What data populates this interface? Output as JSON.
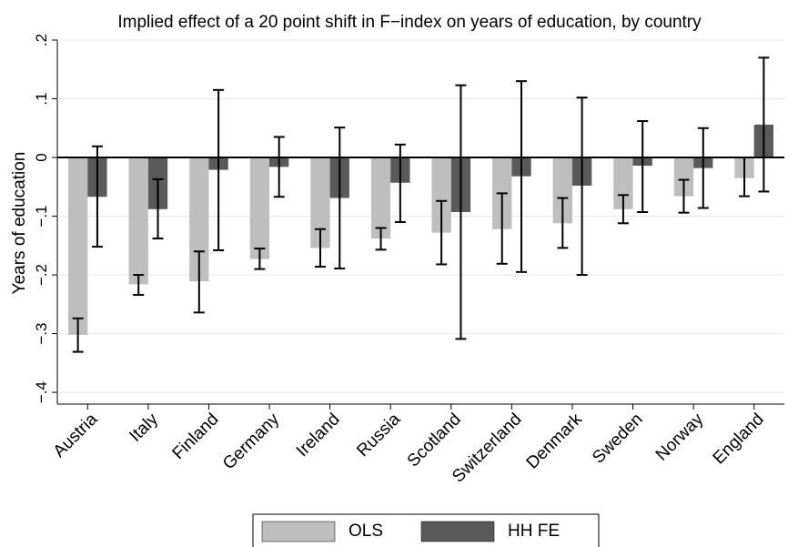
{
  "chart_data": {
    "type": "bar",
    "title": "Implied effect of a 20 point shift in F−index on years of education, by country",
    "y_label": "Years of education",
    "categories": [
      "Austria",
      "Italy",
      "Finland",
      "Germany",
      "Ireland",
      "Russia",
      "Scotland",
      "Switzerland",
      "Denmark",
      "Sweden",
      "Norway",
      "England"
    ],
    "series": [
      {
        "name": "OLS",
        "color": "#bebebe",
        "values": [
          -0.302,
          -0.216,
          -0.211,
          -0.173,
          -0.154,
          -0.138,
          -0.128,
          -0.122,
          -0.112,
          -0.088,
          -0.066,
          -0.035
        ],
        "ci_low": [
          -0.331,
          -0.234,
          -0.264,
          -0.19,
          -0.186,
          -0.157,
          -0.182,
          -0.181,
          -0.154,
          -0.112,
          -0.094,
          -0.066
        ],
        "ci_high": [
          -0.274,
          -0.2,
          -0.16,
          -0.155,
          -0.122,
          -0.12,
          -0.074,
          -0.061,
          -0.069,
          -0.064,
          -0.038,
          0
        ]
      },
      {
        "name": "HH FE",
        "color": "#5a5a5a",
        "values": [
          -0.067,
          -0.088,
          -0.021,
          -0.016,
          -0.069,
          -0.043,
          -0.093,
          -0.032,
          -0.048,
          -0.014,
          -0.018,
          0.056
        ],
        "ci_low": [
          -0.152,
          -0.138,
          -0.158,
          -0.067,
          -0.189,
          -0.11,
          -0.309,
          -0.195,
          -0.2,
          -0.093,
          -0.086,
          -0.058
        ],
        "ci_high": [
          0.019,
          -0.037,
          0.115,
          0.035,
          0.051,
          0.022,
          0.123,
          0.13,
          0.102,
          0.062,
          0.05,
          0.17
        ]
      }
    ],
    "ylim": [
      -0.42,
      0.2
    ],
    "yticks": [
      {
        "value": -0.4,
        "label": "−.4"
      },
      {
        "value": -0.3,
        "label": "−.3"
      },
      {
        "value": -0.2,
        "label": "−.2"
      },
      {
        "value": -0.1,
        "label": "−.1"
      },
      0,
      {
        "value": 0.1,
        "label": ".1"
      },
      {
        "value": 0.2,
        "label": ".2"
      }
    ],
    "grid": true
  }
}
